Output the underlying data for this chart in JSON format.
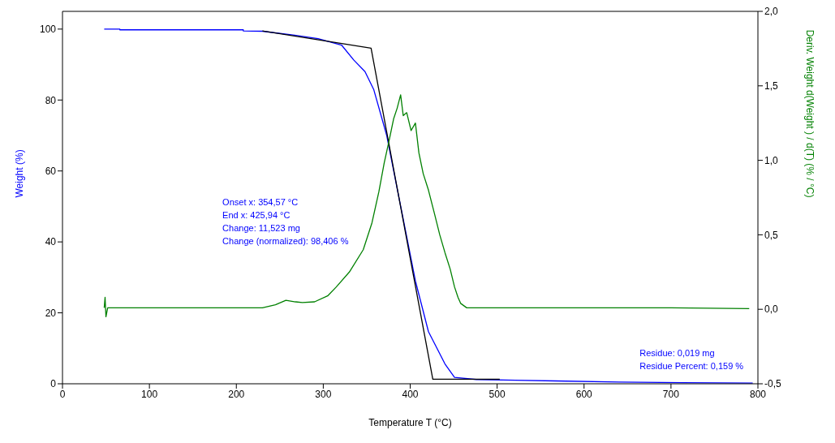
{
  "chart_data": {
    "type": "line",
    "xlabel": "Temperature T (°C)",
    "ylabel": "Weight (%)",
    "y2label": "Deriv. Weight d(Weight ) / d(T) (% / °C)",
    "xlim": [
      0,
      800
    ],
    "xticks": [
      0,
      100,
      200,
      300,
      400,
      500,
      600,
      700,
      800
    ],
    "ylim": [
      0,
      105
    ],
    "yticks": [
      0,
      20,
      40,
      60,
      80,
      100
    ],
    "y2lim": [
      -0.5,
      2.0
    ],
    "y2ticks": [
      {
        "value": -0.5,
        "label": "-0,5"
      },
      {
        "value": 0,
        "label": "0,0"
      },
      {
        "value": 0.5,
        "label": "0,5"
      },
      {
        "value": 1.0,
        "label": "1,0"
      },
      {
        "value": 1.5,
        "label": "1,5"
      },
      {
        "value": 2.0,
        "label": "2,0"
      }
    ],
    "marker": "none",
    "line_style": "solid",
    "series": [
      {
        "color": "#0000ff",
        "x": [
          48,
          66,
          66,
          208,
          208,
          230,
          267,
          294,
          321,
          335,
          348,
          358,
          373,
          387,
          406,
          421,
          440,
          451,
          476,
          521,
          567,
          640,
          713,
          794
        ],
        "values": [
          100,
          100,
          99.8,
          99.8,
          99.5,
          99.4,
          98.3,
          97.3,
          95.5,
          91.3,
          88,
          83,
          70,
          52.6,
          29,
          14.7,
          5.6,
          1.8,
          1.2,
          1.0,
          0.8,
          0.5,
          0.3,
          0.2
        ]
      },
      {
        "color": "#000000",
        "x": [
          230,
          355,
          426,
          503
        ],
        "values": [
          99.5,
          94.6,
          1.3,
          1.3
        ]
      },
      {
        "color": "#008000",
        "axis": "y2",
        "x": [
          48,
          49,
          50,
          52,
          100,
          150,
          200,
          230,
          245,
          257,
          268,
          276,
          290,
          305,
          315,
          330,
          346,
          356,
          364,
          370,
          376,
          381,
          385,
          389,
          392,
          396,
          401,
          406,
          410,
          415,
          421,
          428,
          434,
          440,
          446,
          451,
          455,
          458,
          465,
          500,
          600,
          700,
          790
        ],
        "values": [
          0.01,
          0.08,
          -0.05,
          0.01,
          0.01,
          0.01,
          0.01,
          0.01,
          0.03,
          0.06,
          0.05,
          0.045,
          0.05,
          0.09,
          0.15,
          0.25,
          0.4,
          0.58,
          0.79,
          0.98,
          1.14,
          1.28,
          1.35,
          1.44,
          1.3,
          1.32,
          1.2,
          1.25,
          1.05,
          0.91,
          0.8,
          0.64,
          0.5,
          0.38,
          0.27,
          0.15,
          0.08,
          0.04,
          0.01,
          0.01,
          0.01,
          0.01,
          0.005
        ]
      }
    ],
    "annotations": [
      "Onset x: 354,57 °C",
      "End x: 425,94 °C",
      "Change: 11,523 mg",
      "Change (normalized): 98,406 %",
      "Residue: 0,019 mg",
      "Residue Percent: 0,159 %"
    ]
  }
}
